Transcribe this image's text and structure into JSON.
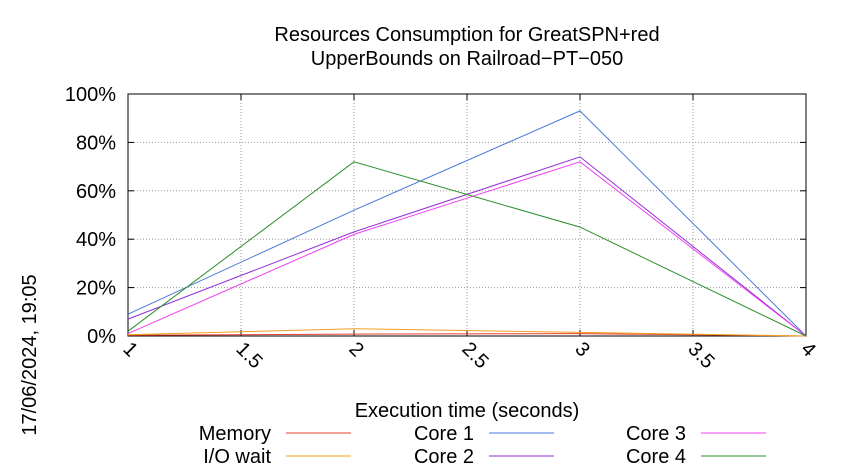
{
  "side_label": "17/06/2024, 19:05",
  "chart_data": {
    "type": "line",
    "title": [
      "Resources Consumption for GreatSPN+red",
      "UpperBounds on Railroad−PT−050"
    ],
    "xlabel": "Execution time (seconds)",
    "ylabel": "",
    "xlim": [
      1,
      4
    ],
    "ylim": [
      0,
      100
    ],
    "grid": true,
    "legend_position": "bottom",
    "xticks": [
      {
        "v": 1,
        "label": "1"
      },
      {
        "v": 1.5,
        "label": "1.5"
      },
      {
        "v": 2,
        "label": "2"
      },
      {
        "v": 2.5,
        "label": "2.5"
      },
      {
        "v": 3,
        "label": "3"
      },
      {
        "v": 3.5,
        "label": "3.5"
      },
      {
        "v": 4,
        "label": "4"
      }
    ],
    "yticks": [
      {
        "v": 0,
        "label": "0%"
      },
      {
        "v": 20,
        "label": "20%"
      },
      {
        "v": 40,
        "label": "40%"
      },
      {
        "v": 60,
        "label": "60%"
      },
      {
        "v": 80,
        "label": "80%"
      },
      {
        "v": 100,
        "label": "100%"
      }
    ],
    "x": [
      1,
      2,
      3,
      4
    ],
    "series": [
      {
        "name": "Memory",
        "color": "#e8402a",
        "values": [
          0.3,
          0.8,
          1.0,
          0.0
        ]
      },
      {
        "name": "I/O wait",
        "color": "#f0a020",
        "values": [
          0.5,
          3.0,
          1.5,
          0.0
        ]
      },
      {
        "name": "Core 1",
        "color": "#4a78d8",
        "values": [
          9,
          52,
          93,
          0
        ]
      },
      {
        "name": "Core 2",
        "color": "#9030d8",
        "values": [
          7,
          43,
          74,
          0
        ]
      },
      {
        "name": "Core 3",
        "color": "#f040f0",
        "values": [
          1,
          42,
          72,
          0
        ]
      },
      {
        "name": "Core 4",
        "color": "#2a902a",
        "values": [
          2,
          72,
          45,
          0
        ]
      }
    ]
  }
}
